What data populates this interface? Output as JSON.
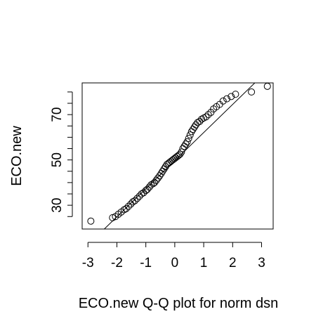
{
  "chart_data": {
    "type": "scatter",
    "title": "",
    "xlabel": "ECO.new Q-Q plot for norm dsn",
    "ylabel": "ECO.new",
    "xlim": [
      -3.2,
      3.4
    ],
    "ylim": [
      19.5,
      84
    ],
    "x_ticks": [
      -3,
      -2,
      -1,
      0,
      1,
      2,
      3
    ],
    "x_tick_labels": [
      "-3",
      "-2",
      "-1",
      "0",
      "1",
      "2",
      "3"
    ],
    "y_ticks": [
      25,
      30,
      35,
      40,
      45,
      50,
      55,
      60,
      65,
      70,
      75,
      80
    ],
    "y_tick_labels": [
      "",
      "30",
      "",
      "",
      "",
      "50",
      "",
      "",
      "",
      "70",
      "",
      ""
    ],
    "grid": false,
    "marker": "open-circle",
    "reference_line": {
      "intercept": 49.7,
      "slope": 12.4
    },
    "series": [
      {
        "points": [
          [
            -2.9,
            23
          ],
          [
            -2.15,
            24.5
          ],
          [
            -2.05,
            25
          ],
          [
            -1.95,
            26
          ],
          [
            -1.85,
            27
          ],
          [
            -1.75,
            28
          ],
          [
            -1.68,
            28.5
          ],
          [
            -1.6,
            29.5
          ],
          [
            -1.52,
            30.5
          ],
          [
            -1.45,
            31.5
          ],
          [
            -1.38,
            32
          ],
          [
            -1.3,
            33
          ],
          [
            -1.22,
            34
          ],
          [
            -1.15,
            35
          ],
          [
            -1.08,
            35.5
          ],
          [
            -1.0,
            36.5
          ],
          [
            -0.95,
            37
          ],
          [
            -0.88,
            38
          ],
          [
            -0.82,
            39
          ],
          [
            -0.75,
            39.5
          ],
          [
            -0.7,
            40
          ],
          [
            -0.64,
            41
          ],
          [
            -0.58,
            42
          ],
          [
            -0.52,
            43
          ],
          [
            -0.47,
            44
          ],
          [
            -0.42,
            45
          ],
          [
            -0.37,
            46
          ],
          [
            -0.32,
            47
          ],
          [
            -0.27,
            48
          ],
          [
            -0.22,
            48.5
          ],
          [
            -0.17,
            49
          ],
          [
            -0.12,
            49.5
          ],
          [
            -0.07,
            50
          ],
          [
            -0.02,
            50.5
          ],
          [
            0.03,
            51
          ],
          [
            0.08,
            51.5
          ],
          [
            0.13,
            52
          ],
          [
            0.18,
            52.5
          ],
          [
            0.23,
            53.5
          ],
          [
            0.28,
            55
          ],
          [
            0.33,
            56
          ],
          [
            0.38,
            57
          ],
          [
            0.43,
            58
          ],
          [
            0.48,
            59.5
          ],
          [
            0.53,
            61
          ],
          [
            0.58,
            62.5
          ],
          [
            0.63,
            63.5
          ],
          [
            0.68,
            64.5
          ],
          [
            0.73,
            65.5
          ],
          [
            0.79,
            66.5
          ],
          [
            0.86,
            67
          ],
          [
            0.93,
            68
          ],
          [
            1.0,
            68.5
          ],
          [
            1.08,
            69
          ],
          [
            1.16,
            70
          ],
          [
            1.25,
            71
          ],
          [
            1.34,
            72.5
          ],
          [
            1.44,
            73.5
          ],
          [
            1.55,
            74.5
          ],
          [
            1.67,
            76
          ],
          [
            1.8,
            77
          ],
          [
            1.95,
            78
          ],
          [
            2.1,
            79
          ],
          [
            2.65,
            80
          ],
          [
            3.2,
            82.5
          ]
        ]
      }
    ]
  }
}
